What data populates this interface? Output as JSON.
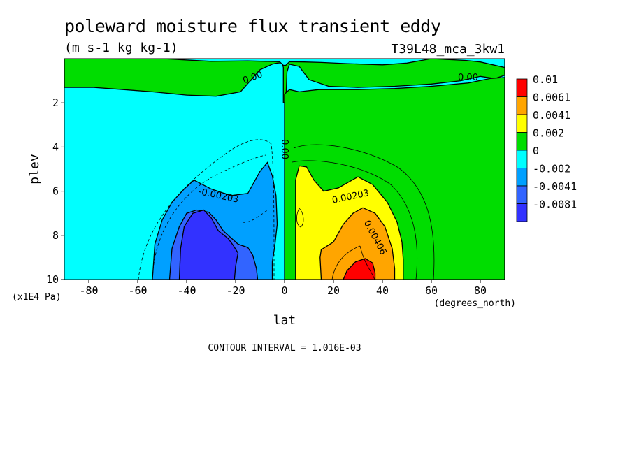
{
  "chart_data": {
    "type": "heatmap",
    "title": "poleward moisture flux transient eddy",
    "subtitle": "(m s-1 kg kg-1)",
    "run_label": "T39L48_mca_3kw1",
    "xlabel": "lat",
    "ylabel": "plev",
    "x_unit": "(degrees_north)",
    "y_unit": "(x1E4 Pa)",
    "xlim": [
      -90,
      90
    ],
    "ylim": [
      10,
      0
    ],
    "x_ticks": [
      -80,
      -60,
      -40,
      -20,
      0,
      20,
      40,
      60,
      80
    ],
    "y_ticks": [
      2,
      4,
      6,
      8,
      10
    ],
    "contour_interval_text": "CONTOUR INTERVAL = 1.016E-03",
    "legend": [
      {
        "label": "0.01",
        "color": "#ff0000"
      },
      {
        "label": "0.0061",
        "color": "#ffa500"
      },
      {
        "label": "0.0041",
        "color": "#ffff00"
      },
      {
        "label": "0.002",
        "color": "#00dd00"
      },
      {
        "label": "0",
        "color": "#00ffff"
      },
      {
        "label": "-0.002",
        "color": "#00a0ff"
      },
      {
        "label": "-0.0041",
        "color": "#3264ff"
      },
      {
        "label": "-0.0081",
        "color": "#3232ff"
      }
    ],
    "contour_labels": [
      {
        "text": "0.00",
        "lat": -13,
        "plev": 0.85,
        "angle": -20
      },
      {
        "text": "0.00",
        "lat": 75,
        "plev": 0.85,
        "angle": 0
      },
      {
        "text": "0.00",
        "lat": 0,
        "plev": 4.1,
        "angle": 90
      },
      {
        "text": "-0.00203",
        "lat": -27,
        "plev": 6.2,
        "angle": 12
      },
      {
        "text": "0.00203",
        "lat": 27,
        "plev": 6.25,
        "angle": -12
      },
      {
        "text": "0.00406",
        "lat": 37,
        "plev": 8.1,
        "angle": 62
      }
    ],
    "regions": [
      {
        "name": "upper-positive-band",
        "color": "#00dd00",
        "level": 0,
        "points": [
          [
            -90,
            0.4
          ],
          [
            -90,
            1.3
          ],
          [
            -78,
            1.3
          ],
          [
            -66,
            1.4
          ],
          [
            -54,
            1.5
          ],
          [
            -40,
            1.65
          ],
          [
            -28,
            1.7
          ],
          [
            -18,
            1.5
          ],
          [
            -14,
            1.0
          ],
          [
            -10,
            0.5
          ],
          [
            -8,
            0.4
          ],
          [
            -5,
            0.25
          ],
          [
            -3,
            0.2
          ],
          [
            -1,
            0.18
          ],
          [
            -0.5,
            0.4
          ],
          [
            -0.5,
            2.0
          ],
          [
            0.5,
            2.0
          ],
          [
            1,
            0.6
          ],
          [
            2,
            0.25
          ],
          [
            6,
            0.35
          ],
          [
            10,
            0.95
          ],
          [
            18,
            1.25
          ],
          [
            30,
            1.3
          ],
          [
            45,
            1.25
          ],
          [
            60,
            1.15
          ],
          [
            72,
            1.0
          ],
          [
            80,
            0.8
          ],
          [
            86,
            0.9
          ],
          [
            90,
            0.75
          ],
          [
            90,
            0
          ],
          [
            -90,
            0
          ]
        ]
      },
      {
        "name": "top-gap",
        "color": "#00ffff",
        "level": -1,
        "points": [
          [
            -90,
            0
          ],
          [
            90,
            0
          ],
          [
            90,
            0.4
          ],
          [
            80,
            0.15
          ],
          [
            74,
            0.08
          ],
          [
            60,
            0.0
          ],
          [
            50,
            0.2
          ],
          [
            40,
            0.28
          ],
          [
            25,
            0.22
          ],
          [
            15,
            0.17
          ],
          [
            8,
            0.15
          ],
          [
            2,
            0.14
          ],
          [
            0.5,
            0.3
          ],
          [
            -0.5,
            0.3
          ],
          [
            -2,
            0.14
          ],
          [
            -15,
            0.1
          ],
          [
            -30,
            0.12
          ],
          [
            -50,
            0.0
          ],
          [
            -90,
            0.0
          ]
        ]
      },
      {
        "name": "nh-positive",
        "color": "#00dd00",
        "level": 0,
        "points": [
          [
            0,
            1.6
          ],
          [
            2,
            1.4
          ],
          [
            6,
            1.5
          ],
          [
            14,
            1.4
          ],
          [
            30,
            1.4
          ],
          [
            45,
            1.35
          ],
          [
            60,
            1.25
          ],
          [
            75,
            1.1
          ],
          [
            84,
            0.9
          ],
          [
            90,
            0.85
          ],
          [
            90,
            10
          ],
          [
            0,
            10
          ]
        ]
      },
      {
        "name": "nh-yellow",
        "color": "#ffff00",
        "level": 0.002,
        "points": [
          [
            4.5,
            10
          ],
          [
            4.5,
            5.5
          ],
          [
            6,
            4.85
          ],
          [
            9,
            4.9
          ],
          [
            12,
            5.5
          ],
          [
            16,
            6.0
          ],
          [
            22,
            5.85
          ],
          [
            30,
            5.35
          ],
          [
            36,
            5.7
          ],
          [
            42,
            6.5
          ],
          [
            46,
            7.4
          ],
          [
            48,
            8.3
          ],
          [
            48.5,
            9.1
          ],
          [
            48.5,
            10
          ]
        ]
      },
      {
        "name": "nh-orange",
        "color": "#ffa500",
        "level": 0.0041,
        "points": [
          [
            15,
            10
          ],
          [
            14.5,
            9.0
          ],
          [
            15,
            8.65
          ],
          [
            20,
            8.3
          ],
          [
            24,
            7.5
          ],
          [
            28,
            7.0
          ],
          [
            32,
            6.75
          ],
          [
            37,
            7.0
          ],
          [
            41,
            7.6
          ],
          [
            44,
            8.6
          ],
          [
            45,
            9.5
          ],
          [
            45,
            10
          ]
        ]
      },
      {
        "name": "nh-red",
        "color": "#ff0000",
        "level": 0.0061,
        "points": [
          [
            24,
            10
          ],
          [
            25.5,
            9.6
          ],
          [
            29,
            9.2
          ],
          [
            33,
            9.05
          ],
          [
            36,
            9.25
          ],
          [
            37,
            9.7
          ],
          [
            37,
            10
          ]
        ]
      },
      {
        "name": "sh-light-blue",
        "color": "#00a0ff",
        "level": -0.002,
        "points": [
          [
            -54,
            10
          ],
          [
            -53,
            8.4
          ],
          [
            -50,
            7.3
          ],
          [
            -46,
            6.5
          ],
          [
            -41,
            5.9
          ],
          [
            -37,
            5.5
          ],
          [
            -30,
            5.9
          ],
          [
            -22,
            6.2
          ],
          [
            -15,
            6.1
          ],
          [
            -10,
            5.1
          ],
          [
            -7,
            4.7
          ],
          [
            -5,
            5.3
          ],
          [
            -3.5,
            6.2
          ],
          [
            -3,
            7.5
          ],
          [
            -4,
            8.5
          ],
          [
            -5,
            9.2
          ],
          [
            -5,
            10
          ]
        ]
      },
      {
        "name": "sh-mid-blue",
        "color": "#3264ff",
        "level": -0.0041,
        "points": [
          [
            -47,
            10
          ],
          [
            -46,
            8.6
          ],
          [
            -43,
            7.6
          ],
          [
            -40,
            7.0
          ],
          [
            -36,
            6.85
          ],
          [
            -31,
            6.95
          ],
          [
            -28,
            7.3
          ],
          [
            -25,
            7.8
          ],
          [
            -22,
            8.1
          ],
          [
            -19,
            8.4
          ],
          [
            -15,
            8.55
          ],
          [
            -13,
            8.9
          ],
          [
            -11.5,
            9.5
          ],
          [
            -11,
            10
          ]
        ]
      },
      {
        "name": "sh-dark-blue",
        "color": "#3232ff",
        "level": -0.0081,
        "points": [
          [
            -43,
            10
          ],
          [
            -42.5,
            8.6
          ],
          [
            -41,
            7.6
          ],
          [
            -37.5,
            7.0
          ],
          [
            -33,
            6.85
          ],
          [
            -30,
            7.2
          ],
          [
            -27,
            7.8
          ],
          [
            -23,
            8.15
          ],
          [
            -21,
            8.45
          ],
          [
            -19,
            8.8
          ],
          [
            -20,
            9.4
          ],
          [
            -20.5,
            10
          ]
        ]
      }
    ]
  }
}
